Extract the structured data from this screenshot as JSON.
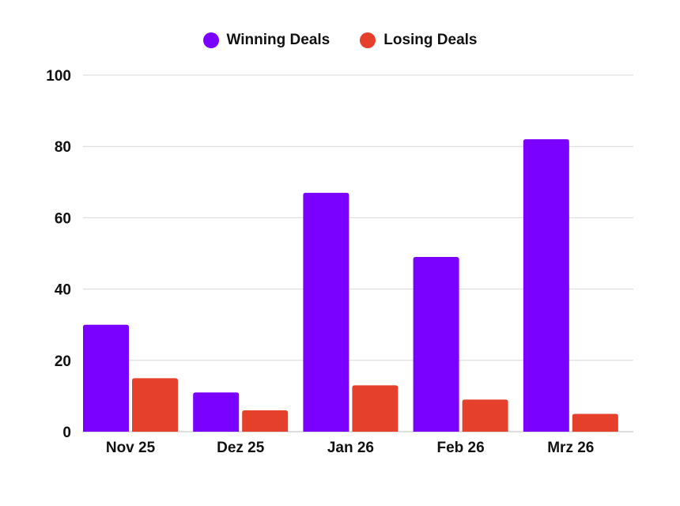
{
  "chart_data": {
    "type": "bar",
    "categories": [
      "Nov 25",
      "Dez 25",
      "Jan 26",
      "Feb 26",
      "Mrz 26"
    ],
    "series": [
      {
        "name": "Winning Deals",
        "color": "#7a00ff",
        "values": [
          30,
          11,
          67,
          49,
          82
        ]
      },
      {
        "name": "Losing Deals",
        "color": "#e5402b",
        "values": [
          15,
          6,
          13,
          9,
          5
        ]
      }
    ],
    "ylim": [
      0,
      100
    ],
    "yticks": [
      0,
      20,
      40,
      60,
      80,
      100
    ],
    "grid": true,
    "legend_position": "top-center"
  }
}
